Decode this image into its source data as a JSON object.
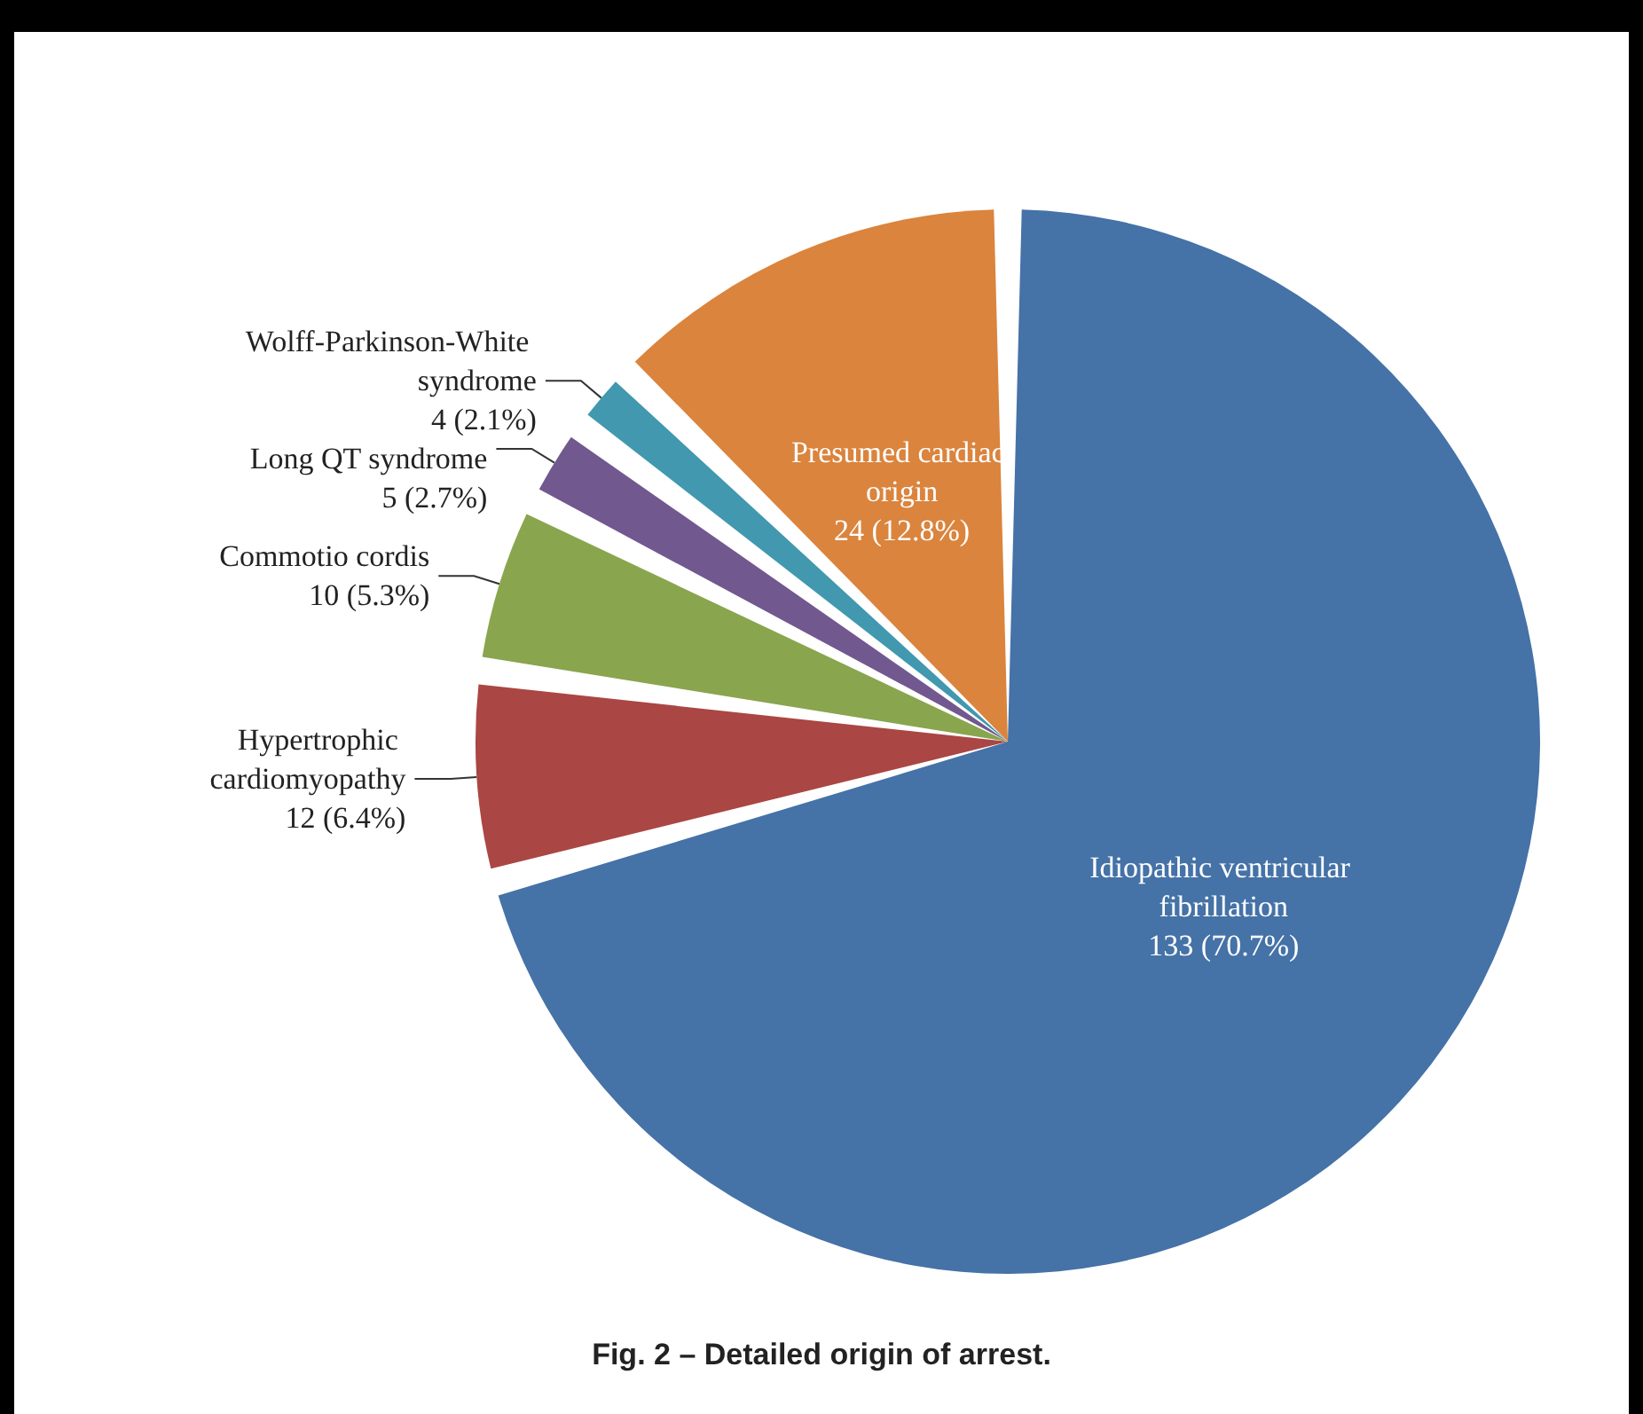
{
  "chart_data": {
    "type": "pie",
    "title": "Fig. 2 – Detailed origin of arrest.",
    "categories": [
      "Idiopathic ventricular fibrillation",
      "Hypertrophic cardiomyopathy",
      "Commotio cordis",
      "Long QT syndrome",
      "Wolff-Parkinson-White syndrome",
      "Presumed cardiac origin"
    ],
    "values": [
      133,
      12,
      10,
      5,
      4,
      24
    ],
    "value_labels": [
      "133 (70.7%)",
      "12 (6.4%)",
      "10 (5.3%)",
      "5 (2.7%)",
      "4 (2.1%)",
      "24 (12.8%)"
    ],
    "colors": [
      "#4572a7",
      "#aa4643",
      "#89a54e",
      "#71588f",
      "#4198af",
      "#db843d"
    ],
    "legend": false
  }
}
